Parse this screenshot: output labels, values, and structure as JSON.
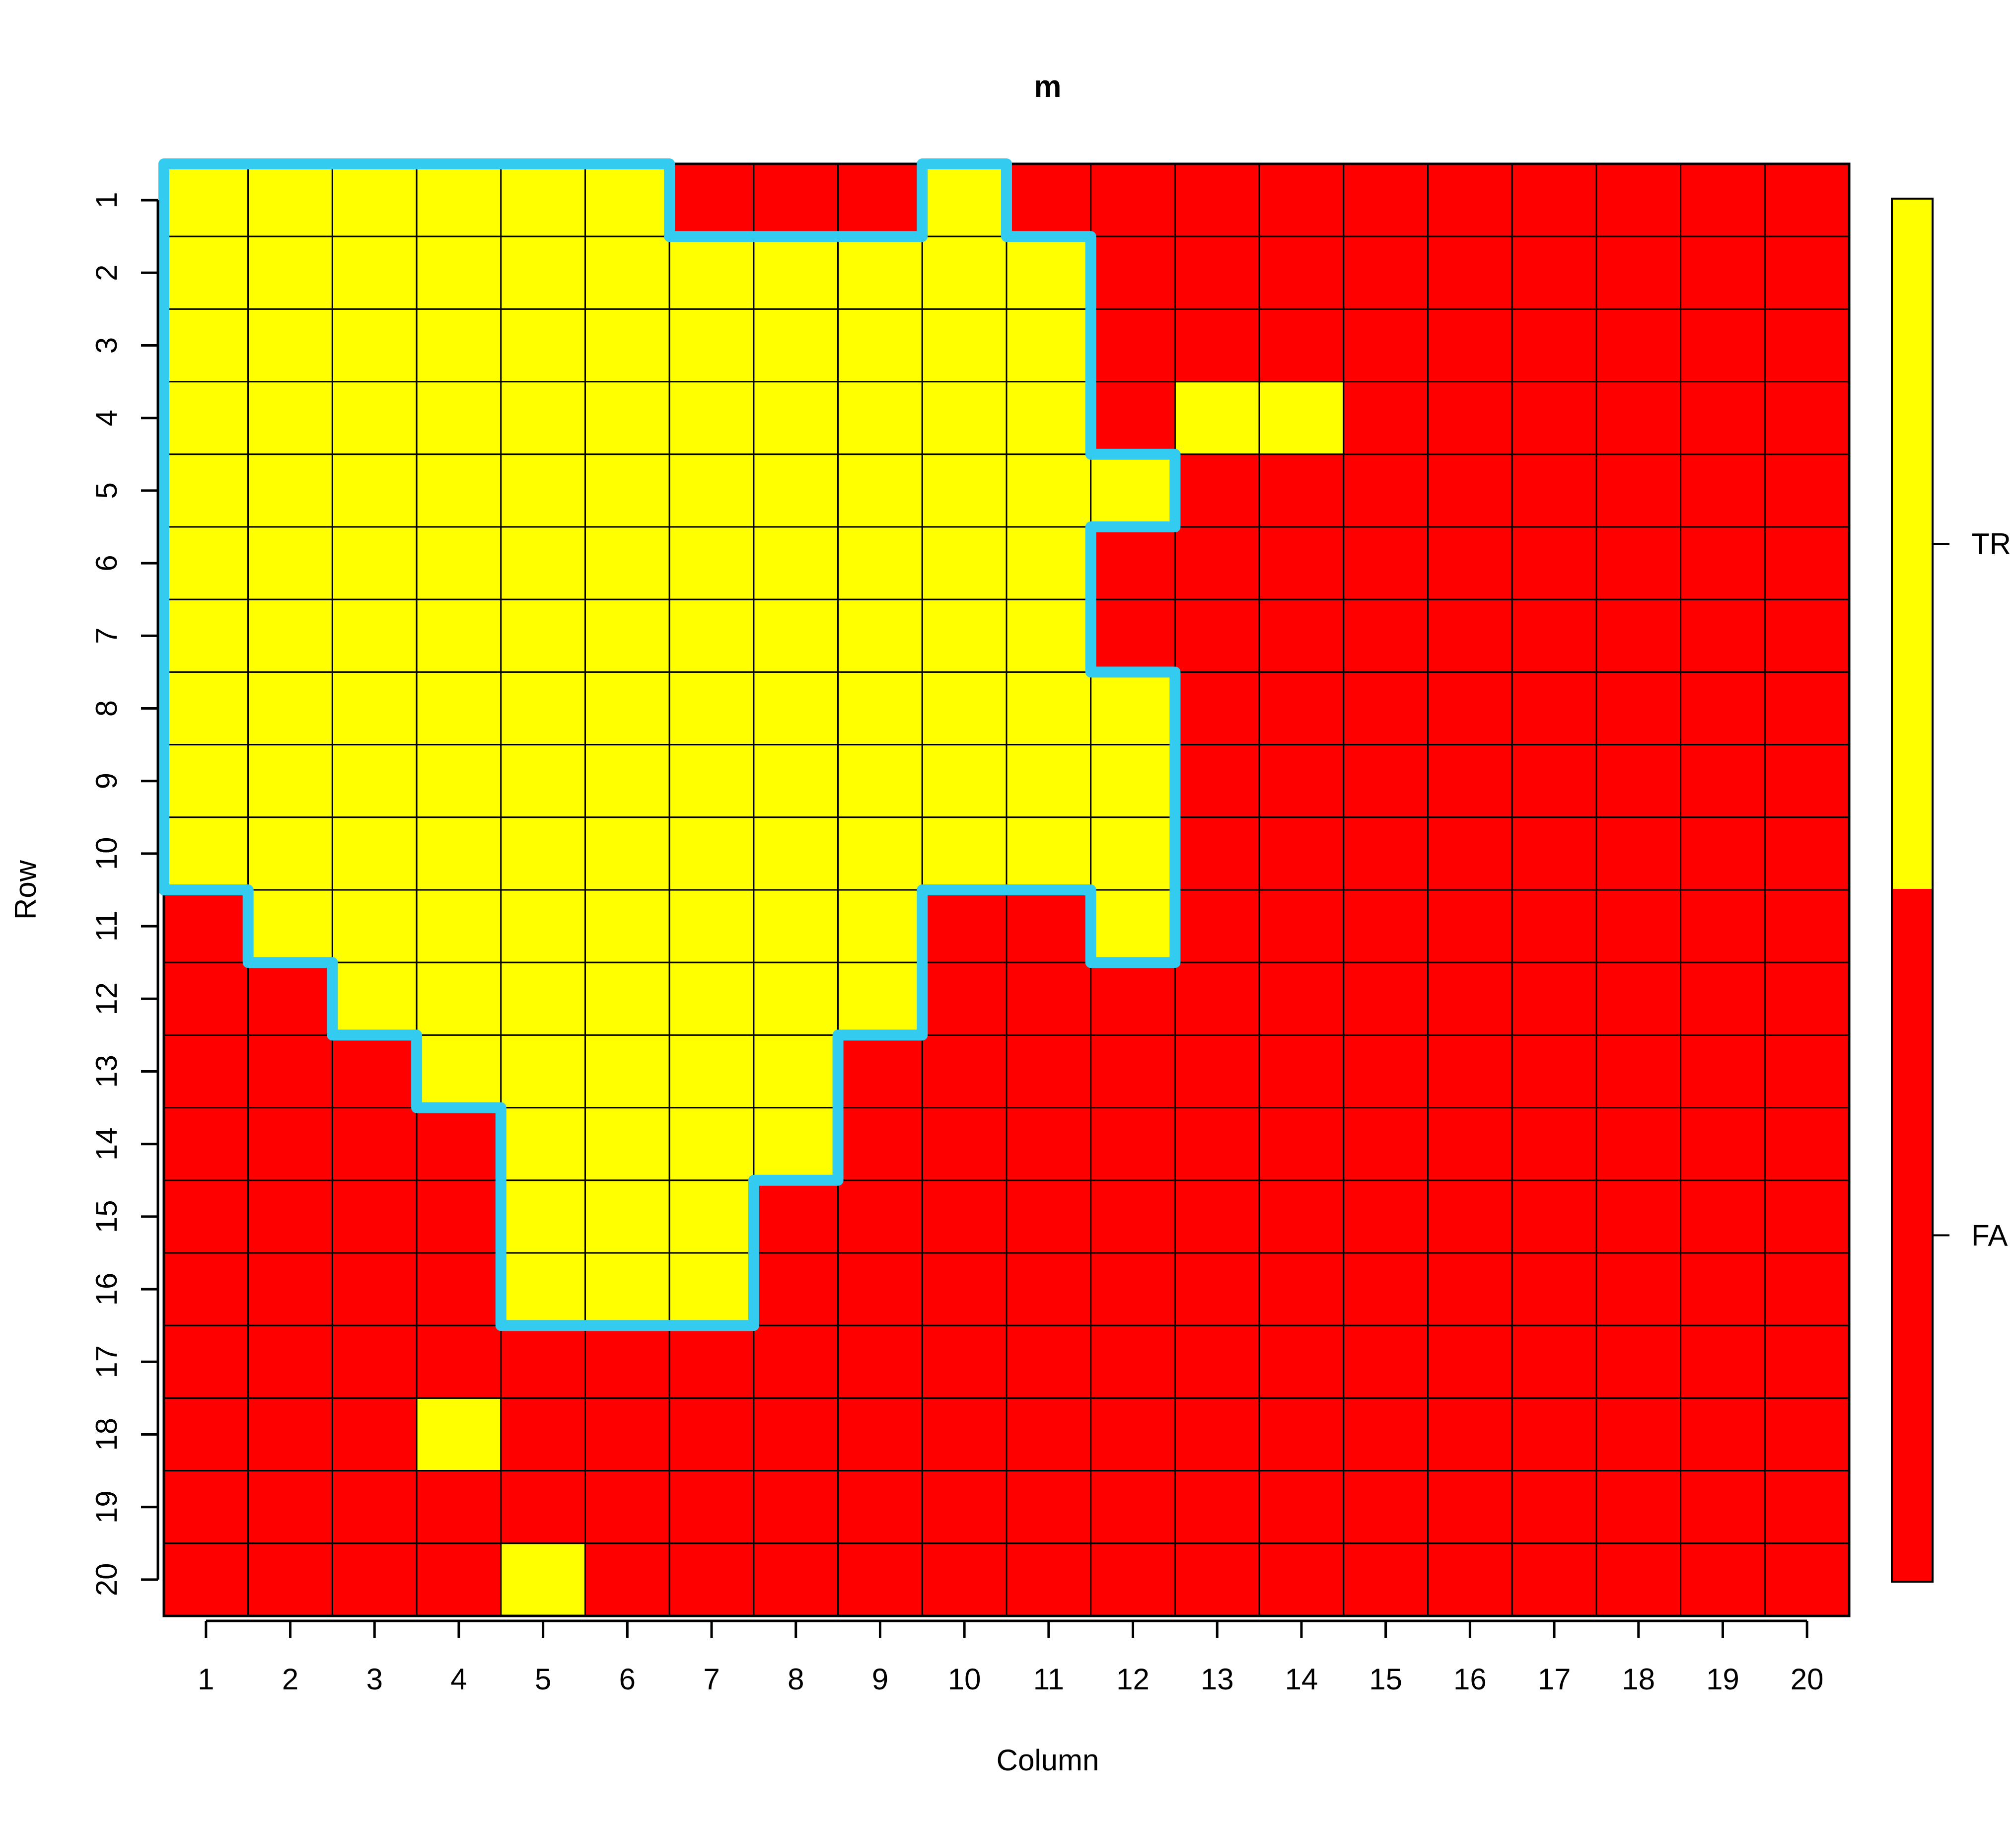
{
  "chart_data": {
    "type": "heatmap",
    "title": "m",
    "xlabel": "Column",
    "ylabel": "Row",
    "n_rows": 20,
    "n_cols": 20,
    "x_ticks": [
      "1",
      "2",
      "3",
      "4",
      "5",
      "6",
      "7",
      "8",
      "9",
      "10",
      "11",
      "12",
      "13",
      "14",
      "15",
      "16",
      "17",
      "18",
      "19",
      "20"
    ],
    "y_ticks": [
      "1",
      "2",
      "3",
      "4",
      "5",
      "6",
      "7",
      "8",
      "9",
      "10",
      "11",
      "12",
      "13",
      "14",
      "15",
      "16",
      "17",
      "18",
      "19",
      "20"
    ],
    "legend": [
      {
        "label": "TR",
        "value": true,
        "color": "#FFFF00"
      },
      {
        "label": "FA",
        "value": false,
        "color": "#FF0000"
      }
    ],
    "legend_position": "right",
    "grid": true,
    "true_color": "#FFFF00",
    "false_color": "#FF0000",
    "highlight_color": "#33CCF0",
    "true_cells_by_row": {
      "1": [
        1,
        2,
        3,
        4,
        5,
        6,
        10
      ],
      "2": [
        1,
        2,
        3,
        4,
        5,
        6,
        7,
        8,
        9,
        10,
        11
      ],
      "3": [
        1,
        2,
        3,
        4,
        5,
        6,
        7,
        8,
        9,
        10,
        11
      ],
      "4": [
        1,
        2,
        3,
        4,
        5,
        6,
        7,
        8,
        9,
        10,
        11,
        13,
        14
      ],
      "5": [
        1,
        2,
        3,
        4,
        5,
        6,
        7,
        8,
        9,
        10,
        11,
        12
      ],
      "6": [
        1,
        2,
        3,
        4,
        5,
        6,
        7,
        8,
        9,
        10,
        11
      ],
      "7": [
        1,
        2,
        3,
        4,
        5,
        6,
        7,
        8,
        9,
        10,
        11
      ],
      "8": [
        1,
        2,
        3,
        4,
        5,
        6,
        7,
        8,
        9,
        10,
        11,
        12
      ],
      "9": [
        1,
        2,
        3,
        4,
        5,
        6,
        7,
        8,
        9,
        10,
        11,
        12
      ],
      "10": [
        1,
        2,
        3,
        4,
        5,
        6,
        7,
        8,
        9,
        10,
        11,
        12
      ],
      "11": [
        2,
        3,
        4,
        5,
        6,
        7,
        8,
        9,
        12
      ],
      "12": [
        3,
        4,
        5,
        6,
        7,
        8,
        9
      ],
      "13": [
        4,
        5,
        6,
        7,
        8
      ],
      "14": [
        5,
        6,
        7,
        8
      ],
      "15": [
        5,
        6,
        7
      ],
      "16": [
        5,
        6,
        7
      ],
      "17": [],
      "18": [
        4
      ],
      "19": [],
      "20": [
        5
      ]
    }
  }
}
